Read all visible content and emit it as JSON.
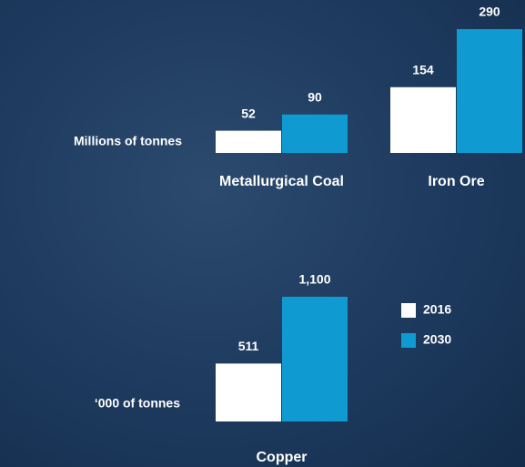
{
  "chart_data": [
    {
      "type": "bar",
      "y_label": "Millions of tonnes",
      "categories": [
        "Metallurgical Coal",
        "Iron Ore"
      ],
      "series": [
        {
          "color": "#ffffff",
          "values": [
            52,
            154
          ]
        },
        {
          "color": "#0f9bd1",
          "values": [
            90,
            290
          ]
        }
      ]
    },
    {
      "type": "bar",
      "y_label": "‘000 of tonnes",
      "categories": [
        "Copper"
      ],
      "series": [
        {
          "name": "2016",
          "color": "#ffffff",
          "values": [
            511
          ]
        },
        {
          "name": "2030",
          "color": "#0f9bd1",
          "values": [
            1100
          ],
          "value_labels": [
            "1,100"
          ]
        }
      ],
      "legend": "right"
    }
  ]
}
